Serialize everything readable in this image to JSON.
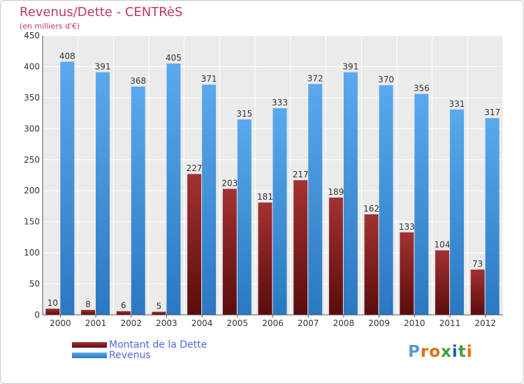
{
  "header": {
    "title": "Revenus/Dette - CENTRèS",
    "subtitle": "(en milliers d'€)"
  },
  "legend": {
    "items": [
      {
        "label": "Montant de la Dette",
        "color": "#7a1a1a"
      },
      {
        "label": "Revenus",
        "color": "#3b8fd4"
      }
    ]
  },
  "logo": {
    "text": "Proxiti",
    "letters": [
      "P",
      "r",
      "o",
      "x",
      "i",
      "t",
      "i"
    ],
    "colors": [
      "#5b9bd5",
      "#e46c0a",
      "#e46c0a",
      "#3f9f3f",
      "#1f5fbf",
      "#3f9f3f",
      "#e46c0a"
    ]
  },
  "chart_data": {
    "type": "bar",
    "categories": [
      "2000",
      "2001",
      "2002",
      "2003",
      "2004",
      "2005",
      "2006",
      "2007",
      "2008",
      "2009",
      "2010",
      "2011",
      "2012"
    ],
    "series": [
      {
        "name": "Montant de la Dette",
        "color": "#7a1a1a",
        "values": [
          10,
          8,
          6,
          5,
          227,
          203,
          181,
          217,
          189,
          162,
          133,
          104,
          73
        ]
      },
      {
        "name": "Revenus",
        "color": "#3b8fd4",
        "values": [
          408,
          391,
          368,
          405,
          371,
          315,
          333,
          372,
          391,
          370,
          356,
          331,
          317
        ]
      }
    ],
    "ylim": [
      0,
      450
    ],
    "yticks": [
      0,
      50,
      100,
      150,
      200,
      250,
      300,
      350,
      400,
      450
    ],
    "grid": true,
    "legend_position": "bottom-left"
  }
}
